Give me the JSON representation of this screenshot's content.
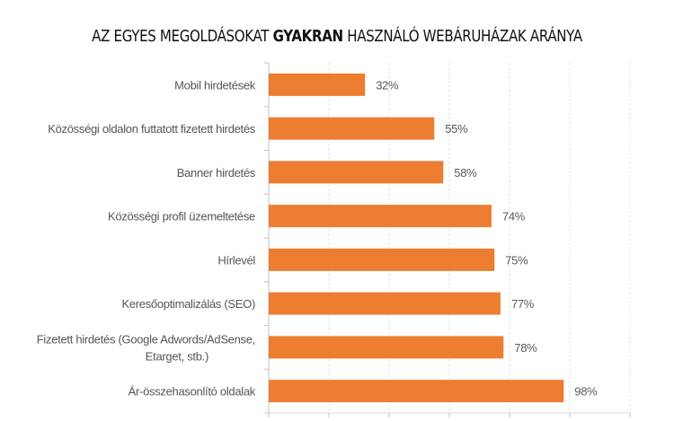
{
  "chart_data": {
    "type": "bar",
    "orientation": "horizontal",
    "title": {
      "pre": "AZ EGYES MEGOLDÁSOKAT ",
      "bold": "GYAKRAN",
      "post": " HASZNÁLÓ WEBÁRUHÁZAK ARÁNYA"
    },
    "categories": [
      [
        "Mobil hirdetések"
      ],
      [
        "Közösségi oldalon futtatott fizetett hirdetés"
      ],
      [
        "Banner hirdetés"
      ],
      [
        "Közösségi profil üzemeltetése"
      ],
      [
        "Hírlevél"
      ],
      [
        "Keresőoptimalizálás (SEO)"
      ],
      [
        "Fizetett hirdetés (Google Adwords/AdSense,",
        "Etarget, stb.)"
      ],
      [
        "Ár-összehasonlító oldalak"
      ]
    ],
    "values": [
      32,
      55,
      58,
      74,
      75,
      77,
      78,
      98
    ],
    "value_labels": [
      "32%",
      "55%",
      "58%",
      "74%",
      "75%",
      "77%",
      "78%",
      "98%"
    ],
    "unit": "%",
    "xlim": [
      0,
      120
    ],
    "grid_step": 20,
    "grid": true,
    "x_tick_labels_visible": false,
    "legend": "none",
    "bar_color": "#ED7D31"
  }
}
